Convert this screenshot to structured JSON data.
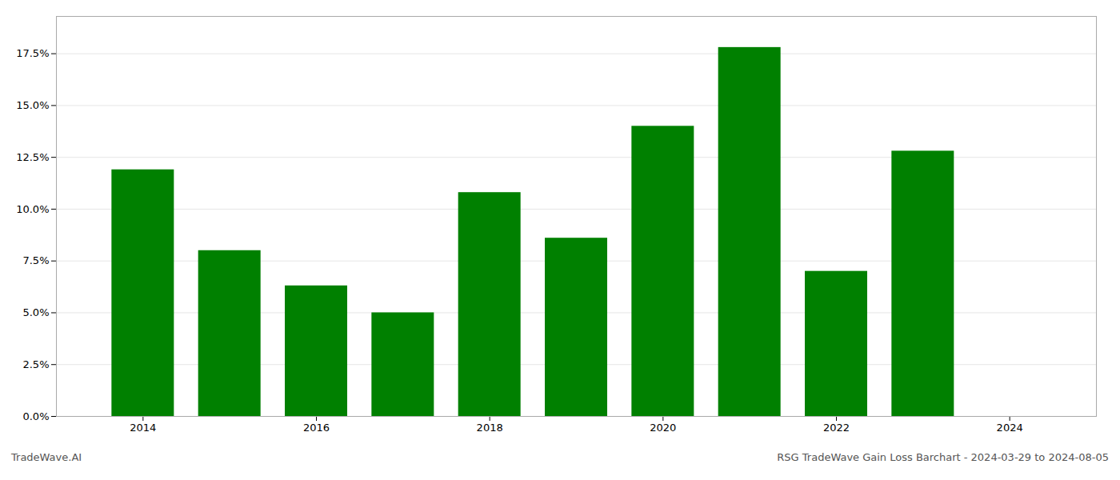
{
  "chart_data": {
    "type": "bar",
    "x": [
      2014,
      2015,
      2016,
      2017,
      2018,
      2019,
      2020,
      2021,
      2022,
      2023
    ],
    "values": [
      0.119,
      0.08,
      0.063,
      0.05,
      0.108,
      0.086,
      0.14,
      0.178,
      0.07,
      0.128
    ],
    "color": "#008000",
    "xlim": [
      2013.0,
      2025.0
    ],
    "xticks": [
      2014,
      2016,
      2018,
      2020,
      2022,
      2024
    ],
    "ylim": [
      0,
      0.193
    ],
    "yticks": [
      {
        "value": 0.0,
        "label": "0.0%"
      },
      {
        "value": 0.025,
        "label": "2.5%"
      },
      {
        "value": 0.05,
        "label": "5.0%"
      },
      {
        "value": 0.075,
        "label": "7.5%"
      },
      {
        "value": 0.1,
        "label": "10.0%"
      },
      {
        "value": 0.125,
        "label": "12.5%"
      },
      {
        "value": 0.15,
        "label": "15.0%"
      },
      {
        "value": 0.175,
        "label": "17.5%"
      }
    ],
    "grid": true,
    "annotations": [
      "TradeWave.AI",
      "RSG TradeWave Gain Loss Barchart - 2024-03-29 to 2024-08-05"
    ]
  }
}
